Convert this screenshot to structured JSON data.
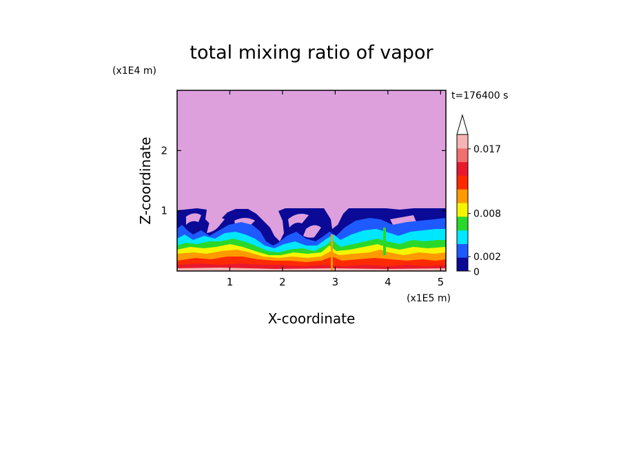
{
  "chart_data": {
    "type": "heatmap",
    "title": "total mixing ratio of vapor",
    "time_label": "t=176400 s",
    "xlabel": "X-coordinate",
    "ylabel": "Z-coordinate",
    "x_unit": "(x1E5 m)",
    "y_unit": "(x1E4 m)",
    "x_ticks": [
      "1",
      "2",
      "3",
      "4",
      "5"
    ],
    "y_ticks": [
      "1",
      "2"
    ],
    "xlim": [
      0,
      5.1
    ],
    "ylim": [
      0,
      3
    ],
    "colorbar": {
      "tick_labels": [
        "0.017",
        "0.008",
        "0.002",
        "0"
      ],
      "tick_values": [
        0.017,
        0.008,
        0.002,
        0
      ],
      "extend": "max",
      "colors": [
        "#0a0a96",
        "#1e5aff",
        "#00e6ff",
        "#2ad82a",
        "#f5f500",
        "#ff9a00",
        "#ff2a00",
        "#e8192c",
        "#f07070",
        "#f5b5b5"
      ],
      "above_max_color": "#dda0dd"
    },
    "field_summary": {
      "upper_region_value": "above 0.017",
      "upper_region_starts_near_z": 1.0,
      "surface_layer_value": "0.017"
    }
  }
}
